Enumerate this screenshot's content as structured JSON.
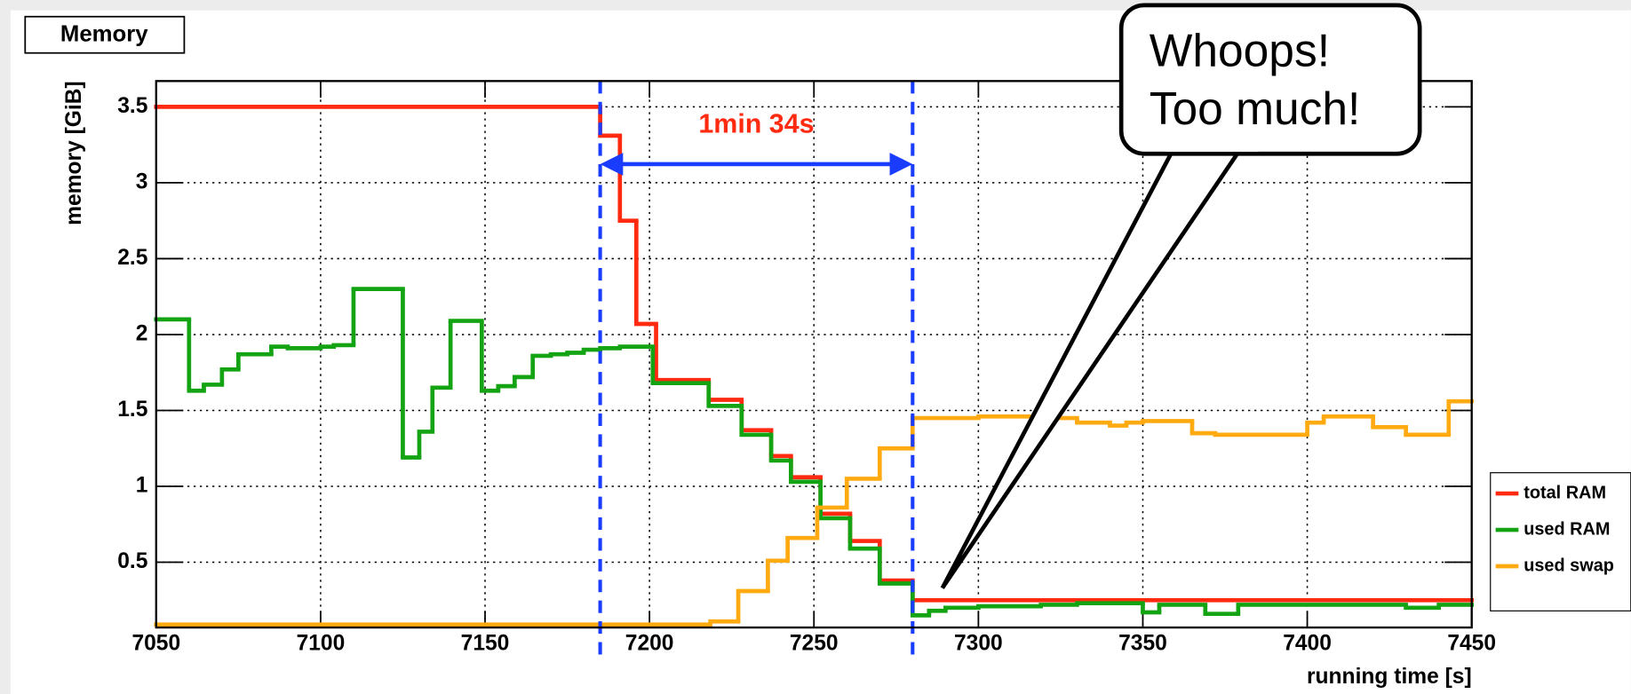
{
  "chart_data": {
    "type": "step",
    "title": "Memory",
    "xlabel": "running time [s]",
    "ylabel": "memory [GiB]",
    "xlim": [
      7050,
      7450
    ],
    "ylim": [
      0.07,
      3.67
    ],
    "xticks": [
      7050,
      7100,
      7150,
      7200,
      7250,
      7300,
      7350,
      7400,
      7450
    ],
    "yticks": [
      0.5,
      1,
      1.5,
      2,
      2.5,
      3,
      3.5
    ],
    "grid": true,
    "legend": "right",
    "series": [
      {
        "name": "total RAM",
        "color": "#ff2a10",
        "x": [
          7050,
          7185,
          7191,
          7196,
          7202,
          7218,
          7228,
          7237,
          7243,
          7252,
          7261,
          7270,
          7280
        ],
        "values": [
          3.5,
          3.31,
          2.75,
          2.07,
          1.7,
          1.57,
          1.37,
          1.2,
          1.06,
          0.82,
          0.64,
          0.38,
          0.25
        ]
      },
      {
        "name": "used RAM",
        "color": "#13a313",
        "x": [
          7050,
          7060,
          7064.5,
          7070,
          7075,
          7085,
          7090,
          7100,
          7104,
          7110,
          7125,
          7130,
          7134,
          7139.5,
          7149,
          7154,
          7159,
          7164.5,
          7170,
          7175,
          7180,
          7185,
          7191,
          7201,
          7218,
          7228,
          7237,
          7243,
          7252,
          7261,
          7270,
          7280,
          7285,
          7290,
          7300,
          7319,
          7330,
          7350,
          7355,
          7369,
          7379,
          7430,
          7440
        ],
        "values": [
          2.1,
          1.63,
          1.67,
          1.77,
          1.87,
          1.92,
          1.91,
          1.92,
          1.93,
          2.3,
          1.19,
          1.36,
          1.65,
          2.09,
          1.63,
          1.66,
          1.72,
          1.86,
          1.87,
          1.88,
          1.9,
          1.91,
          1.92,
          1.68,
          1.53,
          1.34,
          1.17,
          1.03,
          0.79,
          0.59,
          0.36,
          0.15,
          0.18,
          0.2,
          0.21,
          0.22,
          0.23,
          0.17,
          0.22,
          0.16,
          0.22,
          0.2,
          0.22
        ]
      },
      {
        "name": "used swap",
        "color": "#ffaa10",
        "x": [
          7050,
          7218.5,
          7227,
          7236,
          7242,
          7251,
          7260,
          7270,
          7280,
          7300,
          7320,
          7330,
          7340,
          7345,
          7350,
          7365,
          7372,
          7400,
          7405,
          7420,
          7430,
          7443
        ],
        "values": [
          0.09,
          0.11,
          0.31,
          0.51,
          0.66,
          0.86,
          1.05,
          1.25,
          1.45,
          1.46,
          1.45,
          1.42,
          1.4,
          1.42,
          1.43,
          1.35,
          1.34,
          1.42,
          1.46,
          1.39,
          1.34,
          1.56
        ]
      }
    ],
    "markers": {
      "color": "#1a3cff",
      "x": [
        7185,
        7280
      ],
      "label": "1min 34s",
      "label_color": "#ff2a10"
    },
    "callout": [
      "Whoops!",
      "Too much!"
    ]
  }
}
